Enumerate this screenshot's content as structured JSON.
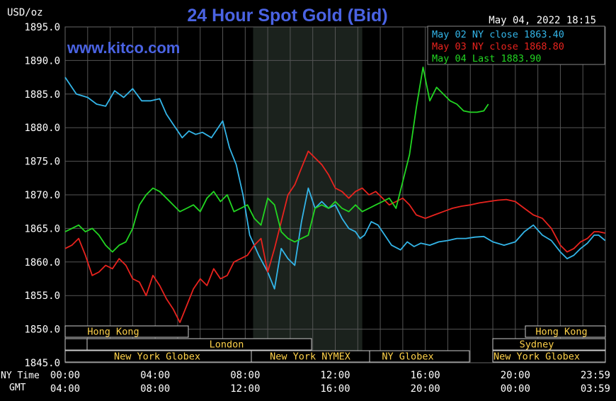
{
  "chart_data": {
    "type": "line",
    "title": "24 Hour Spot Gold (Bid)",
    "watermark": "www.kitco.com",
    "unit_label": "USD/oz",
    "timestamp": "May 04, 2022 18:15",
    "ylim": [
      1845.0,
      1895.0
    ],
    "y_ticks": [
      "1895.0",
      "1890.0",
      "1885.0",
      "1880.0",
      "1875.0",
      "1870.0",
      "1865.0",
      "1860.0",
      "1855.0",
      "1850.0",
      "1845.0"
    ],
    "x_row_labels": [
      "NY Time",
      "GMT"
    ],
    "x_ticks_ny": [
      "00:00",
      "04:00",
      "08:00",
      "12:00",
      "16:00",
      "20:00",
      "23:59"
    ],
    "x_ticks_gmt": [
      "04:00",
      "08:00",
      "12:00",
      "16:00",
      "20:00",
      "00:00",
      "03:59"
    ],
    "grid": true,
    "shaded_hours": [
      8.35,
      13.2
    ],
    "legend_position": "top-right",
    "series": [
      {
        "name": "May 02 NY close 1863.40",
        "color": "#33b5e8",
        "x": [
          0,
          0.5,
          1,
          1.4,
          1.8,
          2.2,
          2.6,
          3.0,
          3.4,
          3.8,
          4.2,
          4.5,
          4.8,
          5.0,
          5.2,
          5.5,
          5.8,
          6.1,
          6.5,
          7.0,
          7.3,
          7.6,
          7.9,
          8.2,
          8.6,
          9.0,
          9.3,
          9.6,
          9.9,
          10.2,
          10.5,
          10.8,
          11.1,
          11.4,
          11.7,
          12.0,
          12.3,
          12.6,
          12.9,
          13.1,
          13.3,
          13.6,
          13.9,
          14.2,
          14.5,
          14.9,
          15.2,
          15.5,
          15.8,
          16.2,
          16.6,
          17.0,
          17.4,
          17.8,
          18.2,
          18.6,
          19.0,
          19.5,
          20.0,
          20.4,
          20.8,
          21.2,
          21.6,
          22.0,
          22.3,
          22.6,
          22.9,
          23.2,
          23.5,
          23.7,
          23.99
        ],
        "y": [
          1887.5,
          1885.0,
          1884.5,
          1883.5,
          1883.2,
          1885.5,
          1884.5,
          1885.8,
          1884.0,
          1884.0,
          1884.3,
          1882.0,
          1880.5,
          1879.5,
          1878.5,
          1879.5,
          1879.0,
          1879.3,
          1878.5,
          1881.0,
          1877.0,
          1874.5,
          1870.0,
          1864.0,
          1861.0,
          1858.5,
          1856.0,
          1862.0,
          1860.5,
          1859.5,
          1866.0,
          1871.0,
          1868.0,
          1869.0,
          1868.0,
          1868.5,
          1866.5,
          1865.0,
          1864.5,
          1863.5,
          1864.0,
          1866.0,
          1865.5,
          1864.0,
          1862.5,
          1861.8,
          1863.0,
          1862.3,
          1862.8,
          1862.5,
          1863.0,
          1863.2,
          1863.5,
          1863.5,
          1863.7,
          1863.8,
          1863.0,
          1862.5,
          1863.0,
          1864.5,
          1865.5,
          1864.0,
          1863.2,
          1861.5,
          1860.5,
          1861.0,
          1862.0,
          1862.8,
          1864.0,
          1864.0,
          1863.2
        ]
      },
      {
        "name": "May 03 NY close 1868.80",
        "color": "#e8231e",
        "x": [
          0,
          0.3,
          0.6,
          0.9,
          1.2,
          1.5,
          1.8,
          2.1,
          2.4,
          2.7,
          3.0,
          3.3,
          3.6,
          3.9,
          4.2,
          4.5,
          4.8,
          5.1,
          5.4,
          5.7,
          6.0,
          6.3,
          6.6,
          6.9,
          7.2,
          7.5,
          7.8,
          8.1,
          8.4,
          8.7,
          9.0,
          9.3,
          9.6,
          9.9,
          10.2,
          10.5,
          10.8,
          11.1,
          11.4,
          11.7,
          12.0,
          12.3,
          12.6,
          12.9,
          13.2,
          13.5,
          13.8,
          14.1,
          14.4,
          14.7,
          15.0,
          15.3,
          15.6,
          16.0,
          16.4,
          16.8,
          17.2,
          17.6,
          18.0,
          18.4,
          18.8,
          19.2,
          19.6,
          20.0,
          20.4,
          20.8,
          21.2,
          21.6,
          22.0,
          22.3,
          22.6,
          22.9,
          23.2,
          23.5,
          23.7,
          23.99
        ],
        "y": [
          1862.0,
          1862.5,
          1863.5,
          1861.0,
          1858.0,
          1858.5,
          1859.5,
          1859.0,
          1860.5,
          1859.5,
          1857.5,
          1857.0,
          1855.0,
          1858.0,
          1856.5,
          1854.5,
          1853.0,
          1851.0,
          1853.5,
          1856.0,
          1857.5,
          1856.5,
          1859.0,
          1857.5,
          1858.0,
          1860.0,
          1860.5,
          1861.0,
          1862.5,
          1863.5,
          1858.5,
          1862.0,
          1866.0,
          1870.0,
          1871.5,
          1874.0,
          1876.5,
          1875.5,
          1874.5,
          1873.0,
          1871.0,
          1870.5,
          1869.5,
          1870.5,
          1871.0,
          1870.0,
          1870.5,
          1869.5,
          1868.5,
          1869.0,
          1869.5,
          1868.5,
          1867.0,
          1866.5,
          1867.0,
          1867.5,
          1868.0,
          1868.3,
          1868.5,
          1868.8,
          1869.0,
          1869.2,
          1869.3,
          1869.0,
          1868.0,
          1867.0,
          1866.5,
          1865.0,
          1862.5,
          1861.5,
          1862.0,
          1863.0,
          1863.5,
          1864.5,
          1864.5,
          1864.3
        ]
      },
      {
        "name": "May 04 Last 1883.90",
        "color": "#22d622",
        "x": [
          0,
          0.3,
          0.6,
          0.9,
          1.2,
          1.5,
          1.8,
          2.1,
          2.4,
          2.7,
          3.0,
          3.3,
          3.6,
          3.9,
          4.2,
          4.5,
          4.8,
          5.1,
          5.4,
          5.7,
          6.0,
          6.3,
          6.6,
          6.9,
          7.2,
          7.5,
          7.8,
          8.1,
          8.4,
          8.7,
          9.0,
          9.3,
          9.6,
          9.9,
          10.2,
          10.5,
          10.8,
          11.1,
          11.4,
          11.7,
          12.0,
          12.3,
          12.6,
          12.9,
          13.2,
          13.5,
          13.8,
          14.1,
          14.4,
          14.7,
          15.0,
          15.3,
          15.6,
          15.9,
          16.2,
          16.5,
          16.8,
          17.1,
          17.4,
          17.7,
          18.0,
          18.3,
          18.6,
          18.8
        ],
        "y": [
          1864.5,
          1865.0,
          1865.5,
          1864.5,
          1865.0,
          1864.0,
          1862.5,
          1861.5,
          1862.5,
          1863.0,
          1865.0,
          1868.5,
          1870.0,
          1871.0,
          1870.5,
          1869.5,
          1868.5,
          1867.5,
          1868.0,
          1868.5,
          1867.5,
          1869.5,
          1870.5,
          1869.0,
          1870.0,
          1867.5,
          1868.0,
          1868.5,
          1866.5,
          1865.5,
          1869.5,
          1868.5,
          1864.5,
          1863.5,
          1863.0,
          1863.5,
          1864.0,
          1868.0,
          1868.5,
          1868.0,
          1869.0,
          1868.0,
          1867.5,
          1868.5,
          1867.5,
          1868.0,
          1868.5,
          1869.0,
          1869.5,
          1868.0,
          1872.0,
          1876.0,
          1883.0,
          1889.0,
          1884.0,
          1886.0,
          1885.0,
          1884.0,
          1883.5,
          1882.5,
          1882.3,
          1882.3,
          1882.5,
          1883.5
        ]
      }
    ]
  },
  "sessions": {
    "hong_kong_left": "Hong Kong",
    "london": "London",
    "ny_globex_left": "New York Globex",
    "ny_nymex": "New York NYMEX",
    "ny_globex_mid": "NY Globex",
    "hong_kong_right": "Hong Kong",
    "sydney": "Sydney",
    "ny_globex_right": "New York Globex"
  },
  "colors": {
    "axis_text": "#ffffff",
    "title": "#4a63e3",
    "watermark": "#4a63e3",
    "session_text": "#ffd24a",
    "shading": "#1e2420"
  }
}
